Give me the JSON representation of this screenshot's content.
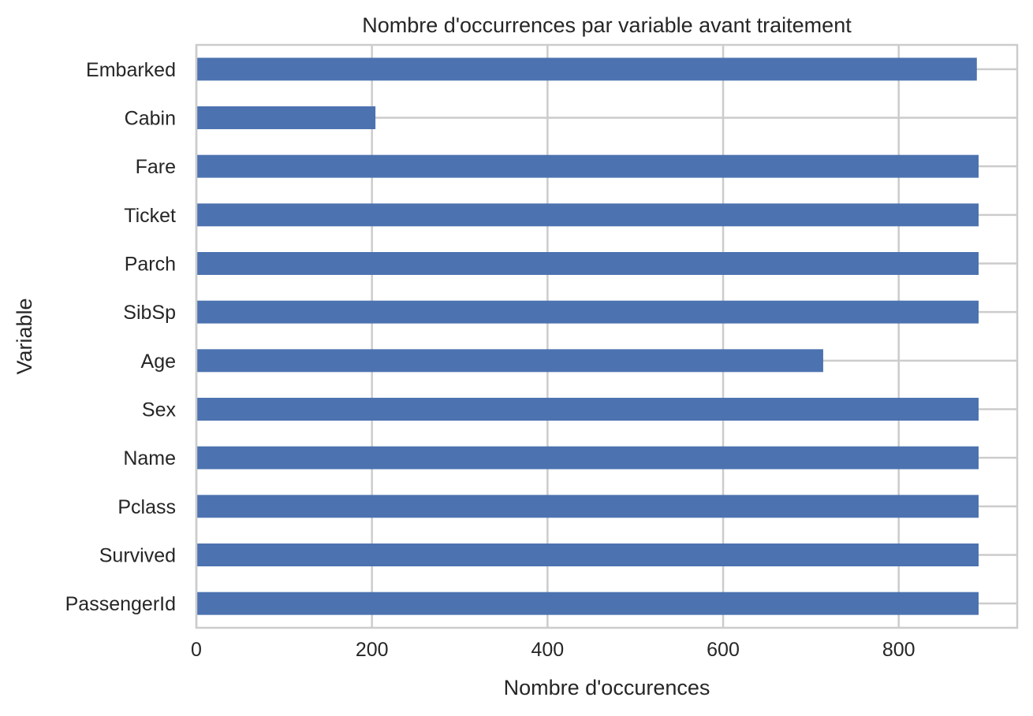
{
  "chart_data": {
    "type": "bar",
    "orientation": "horizontal",
    "title": "Nombre d'occurrences par variable avant traitement",
    "xlabel": "Nombre d'occurences",
    "ylabel": "Variable",
    "categories": [
      "PassengerId",
      "Survived",
      "Pclass",
      "Name",
      "Sex",
      "Age",
      "SibSp",
      "Parch",
      "Ticket",
      "Fare",
      "Cabin",
      "Embarked"
    ],
    "values": [
      891,
      891,
      891,
      891,
      891,
      714,
      891,
      891,
      891,
      891,
      204,
      889
    ],
    "xlim": [
      0,
      935
    ],
    "xticks": [
      0,
      200,
      400,
      600,
      800
    ],
    "grid": true,
    "bar_color": "#4c72b0",
    "grid_color": "#cccccc"
  }
}
